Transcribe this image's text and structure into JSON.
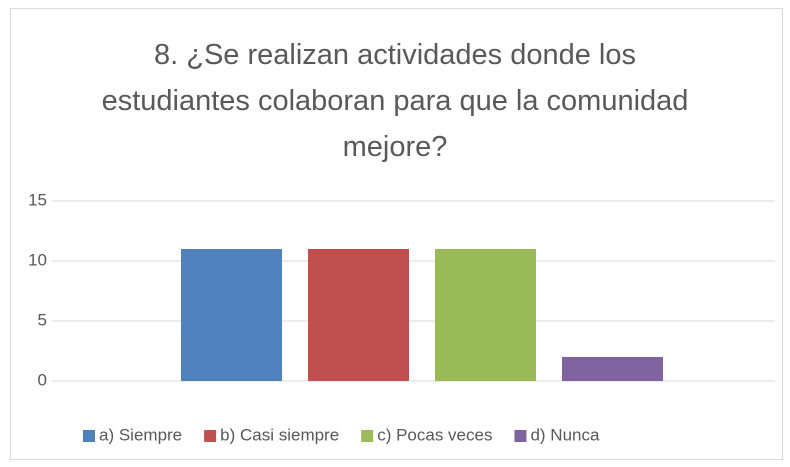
{
  "chart_data": {
    "type": "bar",
    "title": "8. ¿Se realizan actividades donde los estudiantes colaboran para que la comunidad mejore?",
    "categories": [
      null
    ],
    "series": [
      {
        "name": "a) Siempre",
        "color": "#4f81bd",
        "values": [
          11
        ]
      },
      {
        "name": "b) Casi siempre",
        "color": "#c0504d",
        "values": [
          11
        ]
      },
      {
        "name": "c) Pocas veces",
        "color": "#9bbb59",
        "values": [
          11
        ]
      },
      {
        "name": "d) Nunca",
        "color": "#8064a2",
        "values": [
          2
        ]
      }
    ],
    "ylim": [
      0,
      15
    ],
    "yticks": [
      0,
      5,
      10,
      15
    ],
    "grid": true,
    "legend": "bottom"
  }
}
